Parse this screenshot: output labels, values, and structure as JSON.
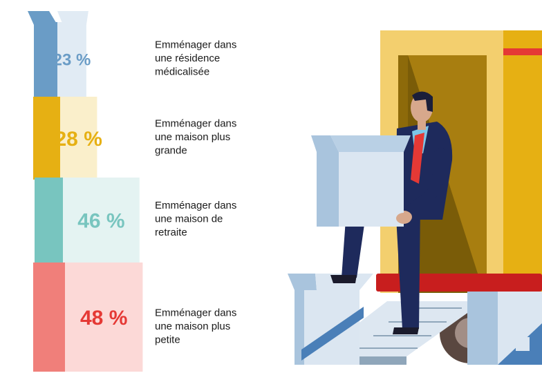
{
  "chart_data": {
    "type": "bar",
    "orientation": "stacked-boxes",
    "unit": "%",
    "categories": [
      [
        "Emménager dans",
        "une résidence",
        "médicalisée"
      ],
      [
        "Emménager dans",
        "une maison plus",
        "grande"
      ],
      [
        "Emménager dans",
        "une maison de",
        "retraite"
      ],
      [
        "Emménager dans",
        "une maison plus",
        "petite"
      ]
    ],
    "values": [
      23,
      28,
      46,
      48
    ],
    "value_labels": [
      "23 %",
      "28 %",
      "46 %",
      "48 %"
    ],
    "colors": [
      {
        "dark": "#6a9cc6",
        "light": "#e1ebf4",
        "text": "#6a9cc6"
      },
      {
        "dark": "#e6b013",
        "light": "#faefcb",
        "text": "#e6b013"
      },
      {
        "dark": "#78c5bf",
        "light": "#e4f3f2",
        "text": "#78c5bf"
      },
      {
        "dark": "#f07f7a",
        "light": "#fcd9d7",
        "text": "#e53935"
      }
    ],
    "title": "",
    "xlabel": "",
    "ylabel": "",
    "grid": false,
    "legend": "none"
  },
  "illustration": {
    "subject": "businessman carrying a box out of a moving truck",
    "colors": {
      "truck_body": "#e6b013",
      "truck_door_frame": "#f3cf6e",
      "truck_interior": "#7a5c08",
      "truck_bumper": "#c81e1e",
      "suit": "#1e2a5c",
      "tie": "#e53935",
      "shirt": "#7cc7e8",
      "box": "#dbe6f1",
      "box_side": "#a9c4dd",
      "ramp": "#dde7f1"
    }
  }
}
